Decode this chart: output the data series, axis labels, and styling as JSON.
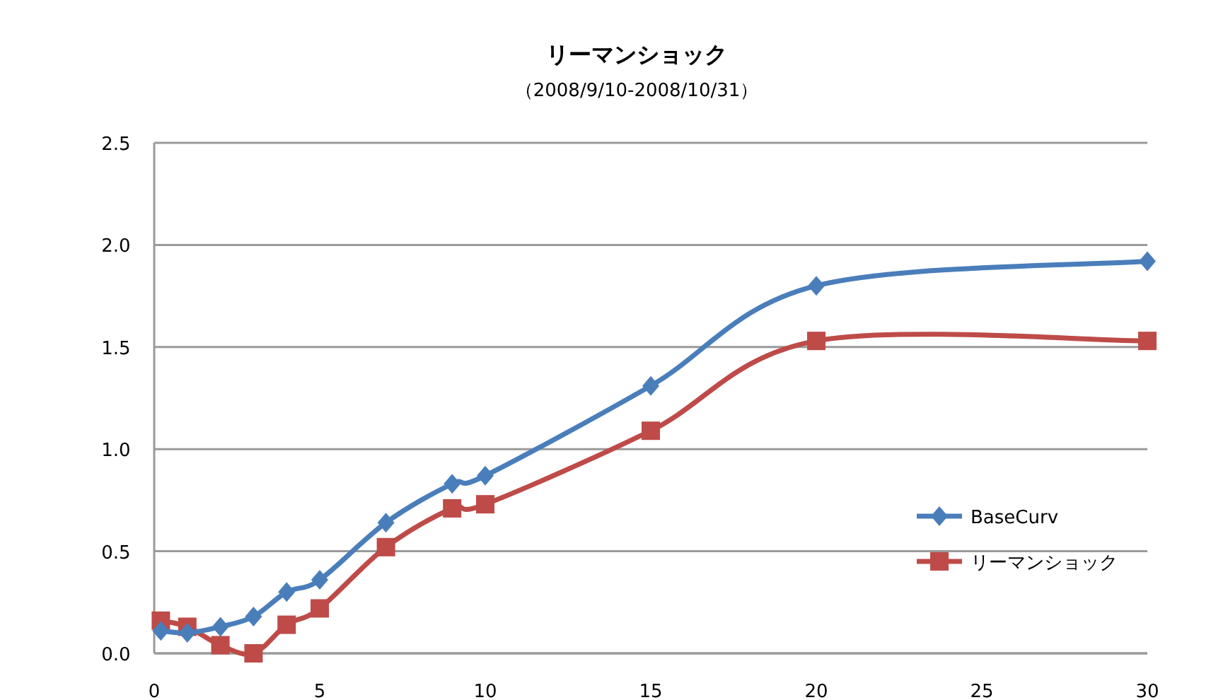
{
  "chart_data": {
    "type": "line",
    "title": "リーマンショック",
    "subtitle": "（2008/9/10-2008/10/31）",
    "x": [
      0.2,
      1,
      2,
      3,
      4,
      5,
      7,
      9,
      10,
      15,
      20,
      30
    ],
    "series": [
      {
        "name": "BaseCurv",
        "color": "#4a7ebb",
        "marker": "diamond",
        "values": [
          0.11,
          0.1,
          0.13,
          0.18,
          0.3,
          0.36,
          0.64,
          0.83,
          0.87,
          1.31,
          1.8,
          1.92
        ]
      },
      {
        "name": "リーマンショック",
        "color": "#be4b48",
        "marker": "square",
        "values": [
          0.16,
          0.13,
          0.04,
          0.0,
          0.14,
          0.22,
          0.52,
          0.71,
          0.73,
          1.09,
          1.53,
          1.53
        ]
      }
    ],
    "xlim": [
      0,
      30
    ],
    "xticks": [
      0,
      5,
      10,
      15,
      20,
      25,
      30
    ],
    "ylim": [
      0,
      2.5
    ],
    "yticks": [
      {
        "value": 0,
        "label": "0.0"
      },
      {
        "value": 0.5,
        "label": "0.5"
      },
      {
        "value": 1,
        "label": "1.0"
      },
      {
        "value": 1.5,
        "label": "1.5"
      },
      {
        "value": 2,
        "label": "2.0"
      },
      {
        "value": 2.5,
        "label": "2.5"
      }
    ],
    "grid": "y",
    "legend": "right",
    "line_style": "solid"
  }
}
